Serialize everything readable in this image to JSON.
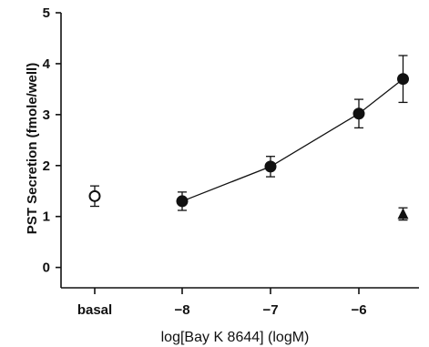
{
  "chart_data": {
    "type": "scatter",
    "title": "",
    "xlabel": "log[Bay K  8644] (logM)",
    "ylabel": "PST Secretion (fmole/well)",
    "ylim": [
      -0.4,
      5
    ],
    "y_ticks": [
      0,
      1,
      2,
      3,
      4,
      5
    ],
    "x_ticks": [
      {
        "label": "basal",
        "x": "basal"
      },
      {
        "label": "−8",
        "x": -8
      },
      {
        "label": "−7",
        "x": -7
      },
      {
        "label": "−6",
        "x": -6
      }
    ],
    "series": [
      {
        "marker": "open-circle",
        "connected": false,
        "points": [
          {
            "x": "basal",
            "y": 1.4,
            "err": 0.2
          }
        ]
      },
      {
        "marker": "filled-circle",
        "connected": true,
        "points": [
          {
            "x": -8,
            "y": 1.3,
            "err": 0.18
          },
          {
            "x": -7,
            "y": 1.98,
            "err": 0.2
          },
          {
            "x": -6,
            "y": 3.02,
            "err": 0.28
          },
          {
            "x": -5.5,
            "y": 3.7,
            "err": 0.46
          }
        ]
      },
      {
        "marker": "filled-triangle",
        "connected": false,
        "points": [
          {
            "x": -5.5,
            "y": 1.05,
            "err": 0.12
          }
        ]
      }
    ],
    "grid": false,
    "colors": {
      "ink": "#111111",
      "background": "#ffffff"
    }
  }
}
